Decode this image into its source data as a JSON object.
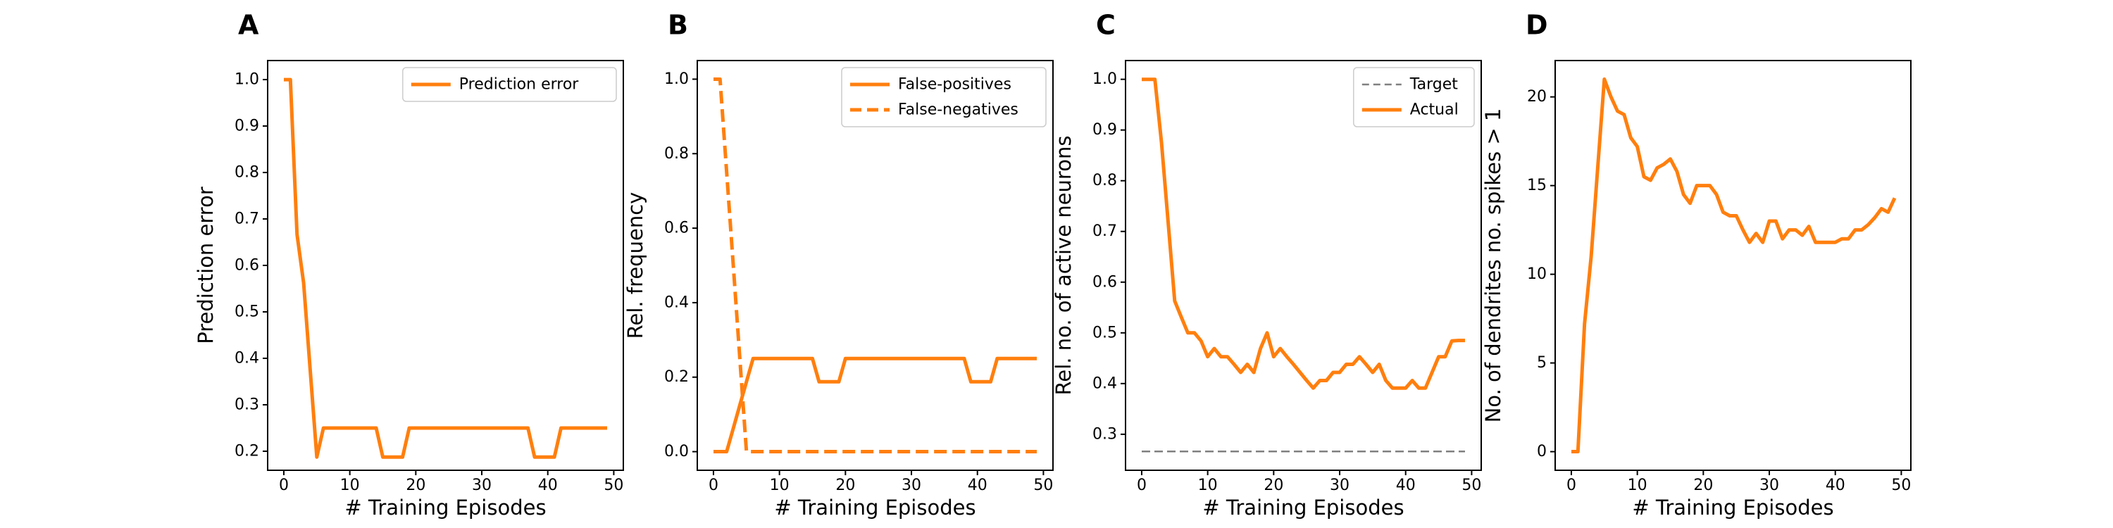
{
  "chart_data": [
    {
      "panel": "A",
      "type": "line",
      "xlabel": "# Training Episodes",
      "ylabel": "Prediction error",
      "xlim": [
        -2.45,
        51.45
      ],
      "ylim": [
        0.159,
        1.041
      ],
      "xticks": [
        0,
        10,
        20,
        30,
        40,
        50
      ],
      "yticks": [
        0.2,
        0.3,
        0.4,
        0.5,
        0.6,
        0.7,
        0.8,
        0.9,
        1.0
      ],
      "ytick_format": 1,
      "legend": "upper right",
      "series": [
        {
          "name": "Prediction error",
          "color": "#ff7f0e",
          "dash": "solid",
          "x": [
            0,
            1,
            2,
            3,
            4,
            5,
            6,
            7,
            8,
            9,
            10,
            11,
            12,
            13,
            14,
            15,
            16,
            17,
            18,
            19,
            20,
            21,
            22,
            23,
            24,
            25,
            26,
            27,
            28,
            29,
            30,
            31,
            32,
            33,
            34,
            35,
            36,
            37,
            38,
            39,
            40,
            41,
            42,
            43,
            44,
            45,
            46,
            47,
            48,
            49
          ],
          "y": [
            1.0,
            1.0,
            0.667,
            0.562,
            0.375,
            0.1875,
            0.25,
            0.25,
            0.25,
            0.25,
            0.25,
            0.25,
            0.25,
            0.25,
            0.25,
            0.1875,
            0.1875,
            0.1875,
            0.1875,
            0.25,
            0.25,
            0.25,
            0.25,
            0.25,
            0.25,
            0.25,
            0.25,
            0.25,
            0.25,
            0.25,
            0.25,
            0.25,
            0.25,
            0.25,
            0.25,
            0.25,
            0.25,
            0.25,
            0.1875,
            0.1875,
            0.1875,
            0.1875,
            0.25,
            0.25,
            0.25,
            0.25,
            0.25,
            0.25,
            0.25,
            0.25
          ]
        }
      ]
    },
    {
      "panel": "B",
      "type": "line",
      "xlabel": "# Training Episodes",
      "ylabel": "Rel. frequency",
      "xlim": [
        -2.45,
        51.45
      ],
      "ylim": [
        -0.05,
        1.05
      ],
      "xticks": [
        0,
        10,
        20,
        30,
        40,
        50
      ],
      "yticks": [
        0.0,
        0.2,
        0.4,
        0.6,
        0.8,
        1.0
      ],
      "ytick_format": 1,
      "legend": "upper right",
      "series": [
        {
          "name": "False-positives",
          "color": "#ff7f0e",
          "dash": "solid",
          "x": [
            0,
            1,
            2,
            3,
            4,
            5,
            6,
            7,
            8,
            9,
            10,
            11,
            12,
            13,
            14,
            15,
            16,
            17,
            18,
            19,
            20,
            21,
            22,
            23,
            24,
            25,
            26,
            27,
            28,
            29,
            30,
            31,
            32,
            33,
            34,
            35,
            36,
            37,
            38,
            39,
            40,
            41,
            42,
            43,
            44,
            45,
            46,
            47,
            48,
            49
          ],
          "y": [
            0.0,
            0.0,
            0.0,
            0.0625,
            0.125,
            0.1875,
            0.25,
            0.25,
            0.25,
            0.25,
            0.25,
            0.25,
            0.25,
            0.25,
            0.25,
            0.25,
            0.1875,
            0.1875,
            0.1875,
            0.1875,
            0.25,
            0.25,
            0.25,
            0.25,
            0.25,
            0.25,
            0.25,
            0.25,
            0.25,
            0.25,
            0.25,
            0.25,
            0.25,
            0.25,
            0.25,
            0.25,
            0.25,
            0.25,
            0.25,
            0.1875,
            0.1875,
            0.1875,
            0.1875,
            0.25,
            0.25,
            0.25,
            0.25,
            0.25,
            0.25,
            0.25
          ]
        },
        {
          "name": "False-negatives",
          "color": "#ff7f0e",
          "dash": "dashed",
          "x": [
            0,
            1,
            2,
            3,
            4,
            5,
            6,
            7,
            8,
            9,
            10,
            11,
            12,
            13,
            14,
            15,
            16,
            17,
            18,
            19,
            20,
            21,
            22,
            23,
            24,
            25,
            26,
            27,
            28,
            29,
            30,
            31,
            32,
            33,
            34,
            35,
            36,
            37,
            38,
            39,
            40,
            41,
            42,
            43,
            44,
            45,
            46,
            47,
            48,
            49
          ],
          "y": [
            1.0,
            1.0,
            0.75,
            0.5,
            0.25,
            0.0,
            0.0,
            0.0,
            0.0,
            0.0,
            0.0,
            0.0,
            0.0,
            0.0,
            0.0,
            0.0,
            0.0,
            0.0,
            0.0,
            0.0,
            0.0,
            0.0,
            0.0,
            0.0,
            0.0,
            0.0,
            0.0,
            0.0,
            0.0,
            0.0,
            0.0,
            0.0,
            0.0,
            0.0,
            0.0,
            0.0,
            0.0,
            0.0,
            0.0,
            0.0,
            0.0,
            0.0,
            0.0,
            0.0,
            0.0,
            0.0,
            0.0,
            0.0,
            0.0,
            0.0
          ]
        }
      ]
    },
    {
      "panel": "C",
      "type": "line",
      "xlabel": "# Training Episodes",
      "ylabel": "Rel. no. of active neurons",
      "xlim": [
        -2.45,
        51.45
      ],
      "ylim": [
        0.229,
        1.037
      ],
      "xticks": [
        0,
        10,
        20,
        30,
        40,
        50
      ],
      "yticks": [
        0.3,
        0.4,
        0.5,
        0.6,
        0.7,
        0.8,
        0.9,
        1.0
      ],
      "ytick_format": 1,
      "legend": "upper right",
      "series": [
        {
          "name": "Target",
          "color": "#808080",
          "dash": "dashed",
          "x": [
            0,
            49
          ],
          "y": [
            0.266,
            0.266
          ]
        },
        {
          "name": "Actual",
          "color": "#ff7f0e",
          "dash": "solid",
          "x": [
            0,
            1,
            2,
            3,
            4,
            5,
            6,
            7,
            8,
            9,
            10,
            11,
            12,
            13,
            14,
            15,
            16,
            17,
            18,
            19,
            20,
            21,
            22,
            23,
            24,
            25,
            26,
            27,
            28,
            29,
            30,
            31,
            32,
            33,
            34,
            35,
            36,
            37,
            38,
            39,
            40,
            41,
            42,
            43,
            44,
            45,
            46,
            47,
            48,
            49
          ],
          "y": [
            1.0,
            1.0,
            1.0,
            0.875,
            0.72,
            0.563,
            0.531,
            0.5,
            0.5,
            0.484,
            0.453,
            0.469,
            0.453,
            0.453,
            0.438,
            0.422,
            0.438,
            0.422,
            0.469,
            0.5,
            0.453,
            0.469,
            0.453,
            0.438,
            0.422,
            0.406,
            0.391,
            0.406,
            0.406,
            0.422,
            0.422,
            0.438,
            0.438,
            0.453,
            0.438,
            0.422,
            0.438,
            0.406,
            0.391,
            0.391,
            0.391,
            0.406,
            0.391,
            0.391,
            0.422,
            0.453,
            0.453,
            0.484,
            0.485,
            0.485
          ]
        }
      ]
    },
    {
      "panel": "D",
      "type": "line",
      "xlabel": "# Training Episodes",
      "ylabel": "No. of dendrites no. spikes > 1",
      "xlim": [
        -2.45,
        51.45
      ],
      "ylim": [
        -1.05,
        22.05
      ],
      "xticks": [
        0,
        10,
        20,
        30,
        40,
        50
      ],
      "yticks": [
        0,
        5,
        10,
        15,
        20
      ],
      "ytick_format": 0,
      "legend": "none",
      "series": [
        {
          "name": "",
          "color": "#ff7f0e",
          "dash": "solid",
          "x": [
            0,
            1,
            2,
            3,
            4,
            5,
            6,
            7,
            8,
            9,
            10,
            11,
            12,
            13,
            14,
            15,
            16,
            17,
            18,
            19,
            20,
            21,
            22,
            23,
            24,
            25,
            26,
            27,
            28,
            29,
            30,
            31,
            32,
            33,
            34,
            35,
            36,
            37,
            38,
            39,
            40,
            41,
            42,
            43,
            44,
            45,
            46,
            47,
            48,
            49
          ],
          "y": [
            0,
            0,
            7.2,
            11,
            16,
            21,
            20,
            19.2,
            19,
            17.7,
            17.2,
            15.5,
            15.3,
            16,
            16.2,
            16.5,
            15.8,
            14.5,
            14,
            15,
            15,
            15,
            14.5,
            13.5,
            13.3,
            13.3,
            12.5,
            11.8,
            12.3,
            11.8,
            13,
            13,
            12,
            12.5,
            12.5,
            12.2,
            12.7,
            11.8,
            11.8,
            11.8,
            11.8,
            12,
            12,
            12.5,
            12.5,
            12.8,
            13.2,
            13.7,
            13.5,
            14.3
          ]
        }
      ]
    }
  ],
  "panel_labels": [
    "A",
    "B",
    "C",
    "D"
  ]
}
